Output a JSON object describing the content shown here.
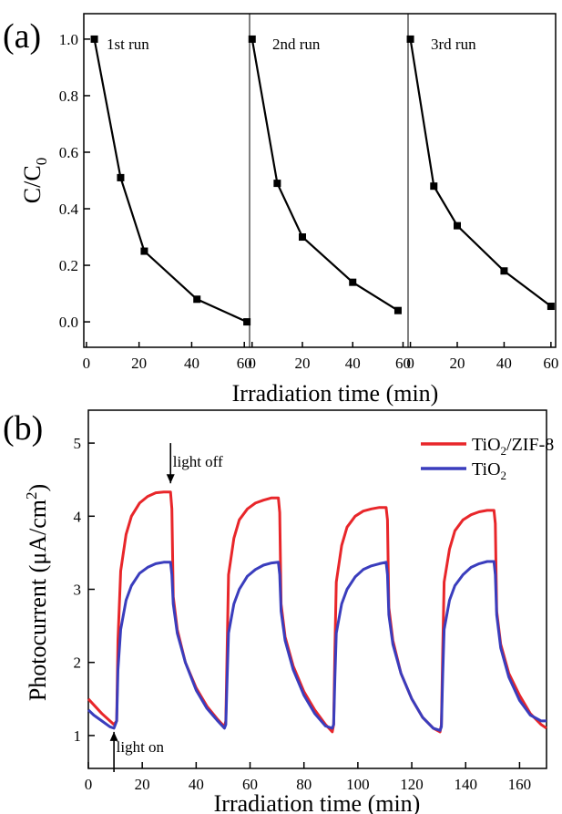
{
  "panel_a_label": "(a)",
  "panel_b_label": "(b)",
  "chart_data": [
    {
      "type": "line",
      "panel": "a",
      "subplots": [
        {
          "title": "1st run",
          "x": [
            3,
            13,
            22,
            42,
            61
          ],
          "y": [
            1.0,
            0.51,
            0.25,
            0.08,
            0.0
          ]
        },
        {
          "title": "2nd run",
          "x": [
            0,
            10,
            20,
            40,
            58
          ],
          "y": [
            1.0,
            0.49,
            0.3,
            0.14,
            0.04
          ]
        },
        {
          "title": "3rd run",
          "x": [
            0,
            10,
            20,
            40,
            60
          ],
          "y": [
            1.0,
            0.48,
            0.34,
            0.18,
            0.055
          ]
        }
      ],
      "xlabel": "Irradiation time (min)",
      "ylabel_main": "C/C",
      "ylabel_sub": "0",
      "ylim": [
        -0.09,
        1.09
      ],
      "yticks": [
        "0.0",
        "0.2",
        "0.4",
        "0.6",
        "0.8",
        "1.0"
      ],
      "xticks": [
        "0",
        "20",
        "40",
        "60"
      ],
      "xlim_per_panel": [
        -1,
        62
      ],
      "marker": "square",
      "grid": false
    },
    {
      "type": "line",
      "panel": "b",
      "xlabel": "Irradiation time (min)",
      "ylabel_main": "Photocurrent (μA/cm",
      "ylabel_sup": "2",
      "ylabel_end": ")",
      "xlim": [
        0,
        170
      ],
      "ylim": [
        0.55,
        5.45
      ],
      "xticks": [
        "0",
        "20",
        "40",
        "60",
        "80",
        "100",
        "120",
        "140",
        "160"
      ],
      "yticks": [
        "1",
        "2",
        "3",
        "4",
        "5"
      ],
      "legend_position": "top-right",
      "series": [
        {
          "name_main": "TiO",
          "name_sub": "2",
          "name_rest": "/ZIF-8",
          "color": "#e8262a",
          "x": [
            0,
            2,
            5,
            8,
            9.5,
            10.5,
            11,
            12,
            14,
            16,
            19,
            22,
            25,
            28,
            30.5,
            31,
            31.5,
            33,
            36,
            40,
            44,
            48,
            50.5,
            51,
            51.5,
            52,
            54,
            56,
            59,
            62,
            65,
            68,
            70.5,
            71,
            71.5,
            73,
            76,
            80,
            84,
            88,
            90.5,
            91,
            91.5,
            92,
            94,
            96,
            99,
            102,
            105,
            108,
            110.5,
            111,
            111.5,
            113,
            116,
            120,
            124,
            128,
            130.5,
            131,
            131.5,
            132,
            134,
            136,
            139,
            142,
            145,
            148,
            150.5,
            151,
            151.5,
            153,
            156,
            160,
            164,
            168,
            170
          ],
          "y": [
            1.5,
            1.42,
            1.3,
            1.2,
            1.15,
            1.2,
            2.3,
            3.25,
            3.75,
            4.0,
            4.18,
            4.27,
            4.32,
            4.33,
            4.33,
            4.1,
            2.9,
            2.45,
            2.0,
            1.65,
            1.4,
            1.22,
            1.12,
            1.2,
            2.2,
            3.2,
            3.7,
            3.95,
            4.1,
            4.18,
            4.22,
            4.25,
            4.25,
            4.05,
            2.8,
            2.35,
            1.95,
            1.6,
            1.35,
            1.15,
            1.05,
            1.15,
            2.2,
            3.1,
            3.6,
            3.85,
            4.0,
            4.07,
            4.1,
            4.12,
            4.12,
            3.95,
            2.75,
            2.3,
            1.85,
            1.5,
            1.25,
            1.1,
            1.05,
            1.15,
            2.2,
            3.1,
            3.55,
            3.8,
            3.95,
            4.02,
            4.06,
            4.08,
            4.08,
            3.9,
            2.7,
            2.25,
            1.85,
            1.55,
            1.3,
            1.15,
            1.1
          ]
        },
        {
          "name_main": "TiO",
          "name_sub": "2",
          "name_rest": "",
          "color": "#3a3dbd",
          "x": [
            0,
            2,
            5,
            8,
            9.5,
            10.5,
            11,
            12,
            14,
            16,
            19,
            22,
            25,
            28,
            30.5,
            31,
            31.5,
            33,
            36,
            40,
            44,
            48,
            50.5,
            51,
            51.5,
            52,
            54,
            56,
            59,
            62,
            65,
            68,
            70.5,
            71,
            71.5,
            73,
            76,
            80,
            84,
            88,
            90.5,
            91,
            91.5,
            92,
            94,
            96,
            99,
            102,
            105,
            108,
            110.5,
            111,
            111.5,
            113,
            116,
            120,
            124,
            128,
            130.5,
            131,
            131.5,
            132,
            134,
            136,
            139,
            142,
            145,
            148,
            150.5,
            151,
            151.5,
            153,
            156,
            160,
            164,
            168,
            170
          ],
          "y": [
            1.35,
            1.28,
            1.2,
            1.12,
            1.1,
            1.2,
            1.9,
            2.45,
            2.85,
            3.05,
            3.22,
            3.3,
            3.35,
            3.37,
            3.37,
            3.2,
            2.8,
            2.4,
            2.0,
            1.62,
            1.37,
            1.2,
            1.1,
            1.15,
            1.8,
            2.4,
            2.8,
            3.0,
            3.18,
            3.27,
            3.33,
            3.36,
            3.37,
            3.2,
            2.7,
            2.3,
            1.9,
            1.55,
            1.3,
            1.13,
            1.1,
            1.15,
            1.8,
            2.4,
            2.8,
            3.0,
            3.17,
            3.27,
            3.32,
            3.35,
            3.37,
            3.2,
            2.65,
            2.25,
            1.85,
            1.5,
            1.25,
            1.1,
            1.07,
            1.12,
            1.85,
            2.45,
            2.85,
            3.05,
            3.2,
            3.3,
            3.35,
            3.38,
            3.38,
            3.2,
            2.65,
            2.2,
            1.8,
            1.48,
            1.28,
            1.2,
            1.2
          ]
        }
      ],
      "annotations": [
        {
          "text": "light off",
          "x": 30,
          "y": 4.75
        },
        {
          "text": "light on",
          "x": 9,
          "y": 0.85
        }
      ],
      "arrows": [
        {
          "direction": "down",
          "x": 30.5,
          "y_from": 5.0,
          "y_to": 4.45
        },
        {
          "direction": "up",
          "x": 9.5,
          "y_from": 0.5,
          "y_to": 1.05
        }
      ],
      "grid": false
    }
  ]
}
